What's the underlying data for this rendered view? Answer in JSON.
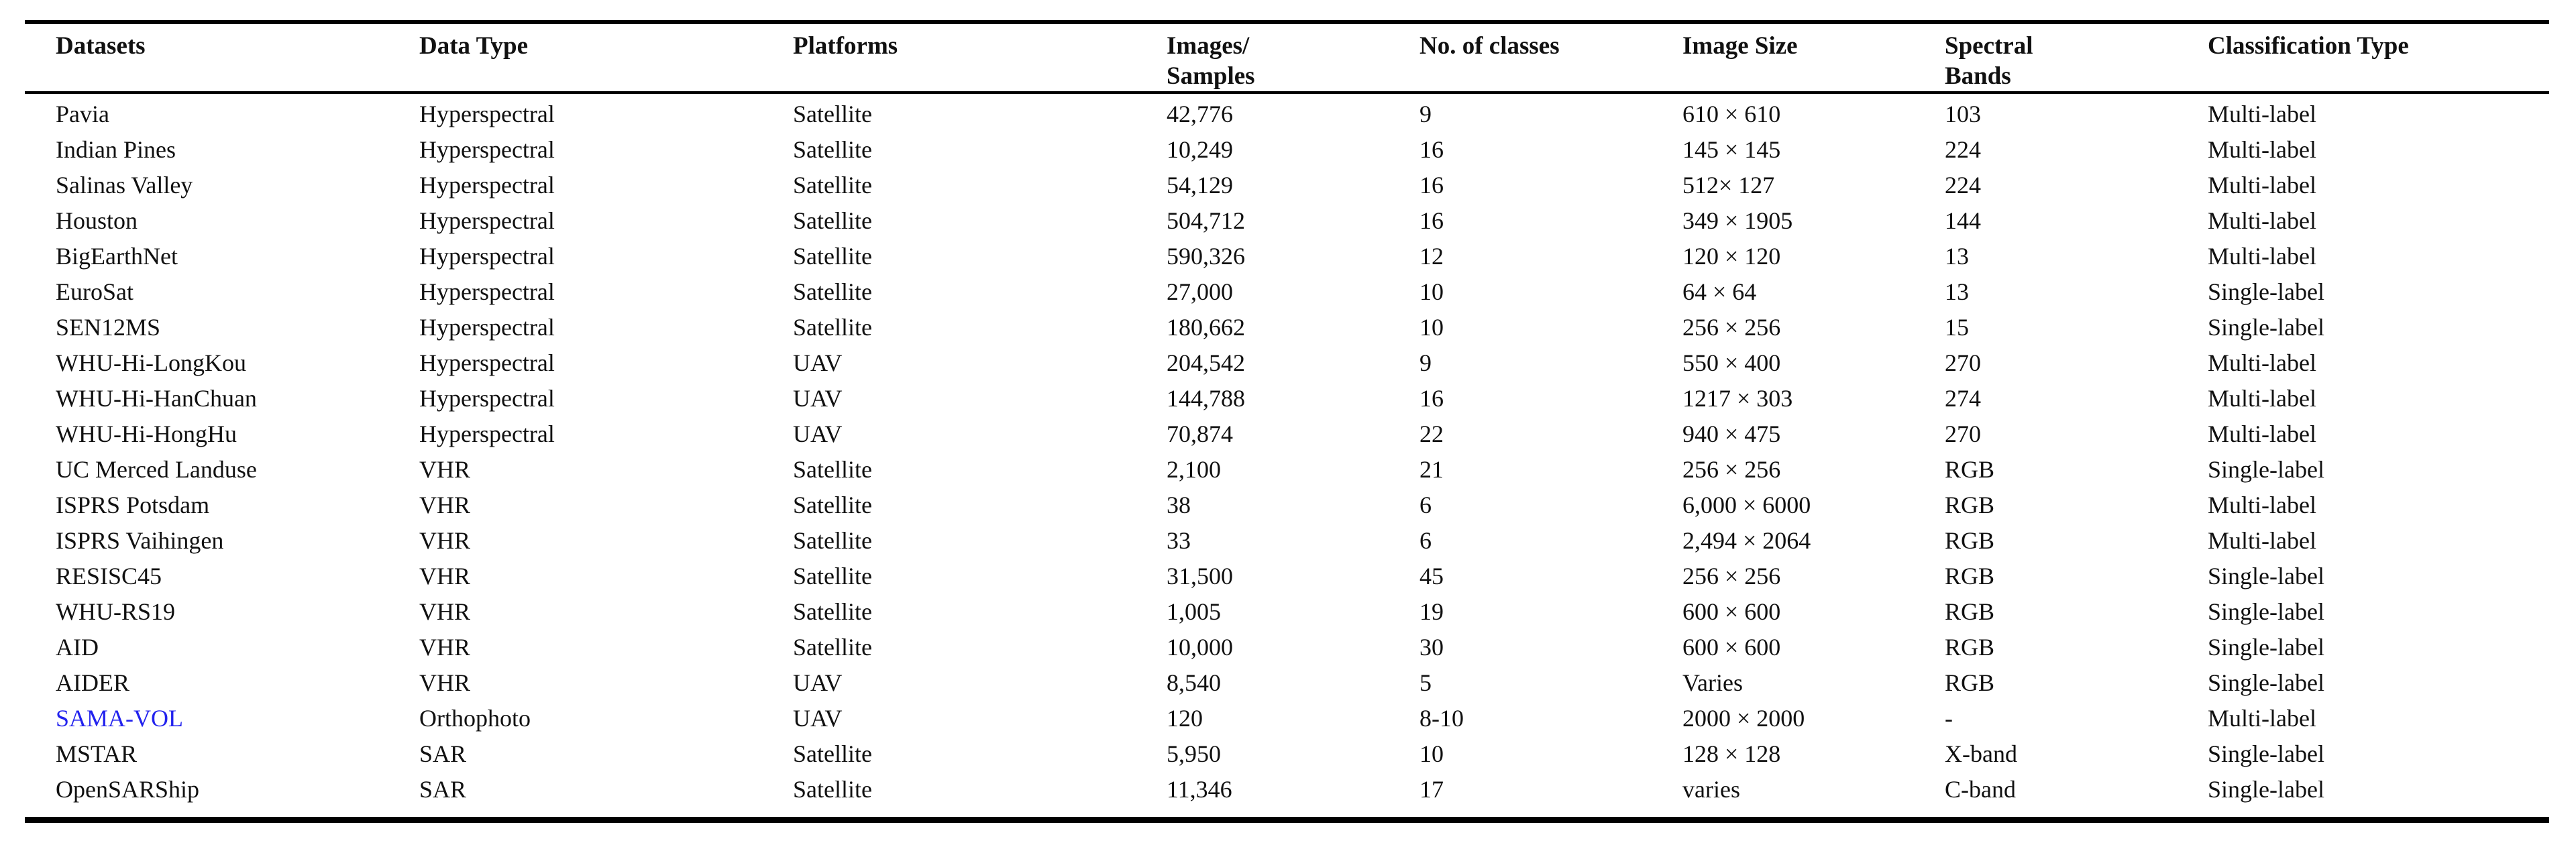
{
  "colors": {
    "text": "#111111",
    "rule": "#000000",
    "link_blue": "#2222ee"
  },
  "table": {
    "headers": [
      {
        "id": "datasets",
        "label": "Datasets"
      },
      {
        "id": "data-type",
        "label": "Data Type"
      },
      {
        "id": "platforms",
        "label": "Platforms"
      },
      {
        "id": "images-samples",
        "label": "Images/\nSamples"
      },
      {
        "id": "num-classes",
        "label": "No. of classes"
      },
      {
        "id": "image-size",
        "label": "Image Size"
      },
      {
        "id": "spectral-bands",
        "label": "Spectral\nBands"
      },
      {
        "id": "classification-type",
        "label": "Classification Type"
      }
    ],
    "column_keys": [
      "dataset",
      "data_type",
      "platform",
      "images_samples",
      "num_classes",
      "image_size",
      "spectral_bands",
      "classification_type"
    ],
    "rows": [
      {
        "dataset": "Pavia",
        "data_type": "Hyperspectral",
        "platform": "Satellite",
        "images_samples": "42,776",
        "num_classes": "9",
        "image_size": "610 × 610",
        "spectral_bands": "103",
        "classification_type": "Multi-label",
        "link": false
      },
      {
        "dataset": "Indian Pines",
        "data_type": "Hyperspectral",
        "platform": "Satellite",
        "images_samples": "10,249",
        "num_classes": "16",
        "image_size": "145 × 145",
        "spectral_bands": "224",
        "classification_type": "Multi-label",
        "link": false
      },
      {
        "dataset": "Salinas Valley",
        "data_type": "Hyperspectral",
        "platform": "Satellite",
        "images_samples": "54,129",
        "num_classes": "16",
        "image_size": "512× 127",
        "spectral_bands": "224",
        "classification_type": "Multi-label",
        "link": false
      },
      {
        "dataset": "Houston",
        "data_type": "Hyperspectral",
        "platform": "Satellite",
        "images_samples": "504,712",
        "num_classes": "16",
        "image_size": "349 × 1905",
        "spectral_bands": "144",
        "classification_type": "Multi-label",
        "link": false
      },
      {
        "dataset": "BigEarthNet",
        "data_type": "Hyperspectral",
        "platform": "Satellite",
        "images_samples": "590,326",
        "num_classes": "12",
        "image_size": "120 × 120",
        "spectral_bands": "13",
        "classification_type": "Multi-label",
        "link": false
      },
      {
        "dataset": "EuroSat",
        "data_type": "Hyperspectral",
        "platform": "Satellite",
        "images_samples": "27,000",
        "num_classes": "10",
        "image_size": "64 × 64",
        "spectral_bands": "13",
        "classification_type": "Single-label",
        "link": false
      },
      {
        "dataset": "SEN12MS",
        "data_type": "Hyperspectral",
        "platform": "Satellite",
        "images_samples": "180,662",
        "num_classes": "10",
        "image_size": "256 × 256",
        "spectral_bands": "15",
        "classification_type": "Single-label",
        "link": false
      },
      {
        "dataset": "WHU-Hi-LongKou",
        "data_type": "Hyperspectral",
        "platform": "UAV",
        "images_samples": "204,542",
        "num_classes": "9",
        "image_size": "550 × 400",
        "spectral_bands": "270",
        "classification_type": "Multi-label",
        "link": false
      },
      {
        "dataset": "WHU-Hi-HanChuan",
        "data_type": "Hyperspectral",
        "platform": "UAV",
        "images_samples": "144,788",
        "num_classes": "16",
        "image_size": "1217 × 303",
        "spectral_bands": "274",
        "classification_type": "Multi-label",
        "link": false
      },
      {
        "dataset": "WHU-Hi-HongHu",
        "data_type": "Hyperspectral",
        "platform": "UAV",
        "images_samples": "70,874",
        "num_classes": "22",
        "image_size": "940 × 475",
        "spectral_bands": "270",
        "classification_type": "Multi-label",
        "link": false
      },
      {
        "dataset": "UC Merced Landuse",
        "data_type": "VHR",
        "platform": "Satellite",
        "images_samples": "2,100",
        "num_classes": "21",
        "image_size": "256 × 256",
        "spectral_bands": "RGB",
        "classification_type": "Single-label",
        "link": false
      },
      {
        "dataset": "ISPRS Potsdam",
        "data_type": "VHR",
        "platform": "Satellite",
        "images_samples": "38",
        "num_classes": "6",
        "image_size": "6,000 × 6000",
        "spectral_bands": "RGB",
        "classification_type": "Multi-label",
        "link": false
      },
      {
        "dataset": "ISPRS Vaihingen",
        "data_type": "VHR",
        "platform": "Satellite",
        "images_samples": "33",
        "num_classes": "6",
        "image_size": "2,494 × 2064",
        "spectral_bands": "RGB",
        "classification_type": "Multi-label",
        "link": false
      },
      {
        "dataset": "RESISC45",
        "data_type": "VHR",
        "platform": "Satellite",
        "images_samples": "31,500",
        "num_classes": "45",
        "image_size": "256 × 256",
        "spectral_bands": "RGB",
        "classification_type": "Single-label",
        "link": false
      },
      {
        "dataset": "WHU-RS19",
        "data_type": "VHR",
        "platform": "Satellite",
        "images_samples": "1,005",
        "num_classes": "19",
        "image_size": "600 × 600",
        "spectral_bands": "RGB",
        "classification_type": "Single-label",
        "link": false
      },
      {
        "dataset": "AID",
        "data_type": "VHR",
        "platform": "Satellite",
        "images_samples": "10,000",
        "num_classes": "30",
        "image_size": "600 × 600",
        "spectral_bands": "RGB",
        "classification_type": "Single-label",
        "link": false
      },
      {
        "dataset": "AIDER",
        "data_type": "VHR",
        "platform": "UAV",
        "images_samples": "8,540",
        "num_classes": "5",
        "image_size": "Varies",
        "spectral_bands": "RGB",
        "classification_type": "Single-label",
        "link": false
      },
      {
        "dataset": "SAMA-VOL",
        "data_type": "Orthophoto",
        "platform": "UAV",
        "images_samples": "120",
        "num_classes": "8-10",
        "image_size": "2000 × 2000",
        "spectral_bands": "-",
        "classification_type": "Multi-label",
        "link": true
      },
      {
        "dataset": "MSTAR",
        "data_type": "SAR",
        "platform": "Satellite",
        "images_samples": "5,950",
        "num_classes": "10",
        "image_size": "128 × 128",
        "spectral_bands": "X-band",
        "classification_type": "Single-label",
        "link": false
      },
      {
        "dataset": "OpenSARShip",
        "data_type": "SAR",
        "platform": "Satellite",
        "images_samples": "11,346",
        "num_classes": "17",
        "image_size": "varies",
        "spectral_bands": "C-band",
        "classification_type": "Single-label",
        "link": false
      }
    ]
  }
}
